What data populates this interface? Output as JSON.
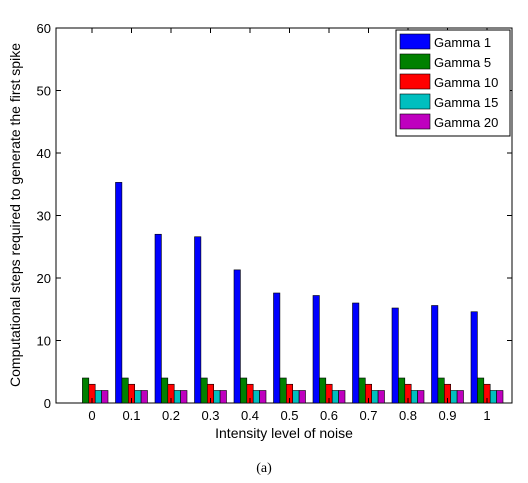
{
  "chart_data": {
    "type": "bar",
    "categories": [
      "0",
      "0.1",
      "0.2",
      "0.3",
      "0.4",
      "0.5",
      "0.6",
      "0.7",
      "0.8",
      "0.9",
      "1"
    ],
    "series": [
      {
        "name": "Gamma 1",
        "color": "#0000ff",
        "values": [
          0,
          35.3,
          27,
          26.6,
          21.3,
          17.6,
          17.2,
          16,
          15.2,
          15.6,
          14.6
        ]
      },
      {
        "name": "Gamma 5",
        "color": "#008000",
        "values": [
          4,
          4,
          4,
          4,
          4,
          4,
          4,
          4,
          4,
          4,
          4
        ]
      },
      {
        "name": "Gamma 10",
        "color": "#ff0000",
        "values": [
          3,
          3,
          3,
          3,
          3,
          3,
          3,
          3,
          3,
          3,
          3
        ]
      },
      {
        "name": "Gamma 15",
        "color": "#00bfbf",
        "values": [
          2,
          2,
          2,
          2,
          2,
          2,
          2,
          2,
          2,
          2,
          2
        ]
      },
      {
        "name": "Gamma 20",
        "color": "#bf00bf",
        "values": [
          2,
          2,
          2,
          2,
          2,
          2,
          2,
          2,
          2,
          2,
          2
        ]
      }
    ],
    "xlabel": "Intensity level of noise",
    "ylabel": "Computational steps required to generate the first spike",
    "ylim": [
      0,
      60
    ],
    "yticks": [
      0,
      10,
      20,
      30,
      40,
      50,
      60
    ],
    "grid": false,
    "legend_position": "top-right"
  },
  "caption": "(a)"
}
